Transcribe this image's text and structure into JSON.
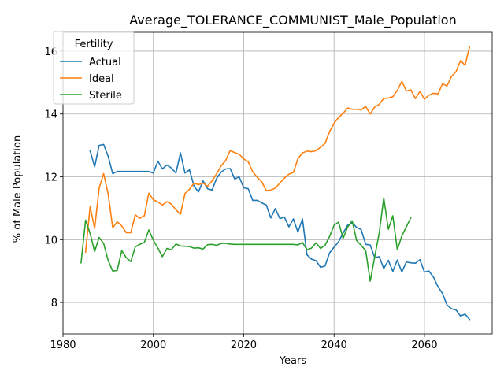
{
  "chart_data": {
    "type": "line",
    "title": "Average_TOLERANCE_COMMUNIST_Male_Population",
    "xlabel": "Years",
    "ylabel": "% of Male Population",
    "xlim": [
      1980,
      2075
    ],
    "ylim": [
      7.0,
      16.6
    ],
    "xticks": [
      1980,
      2000,
      2020,
      2040,
      2060
    ],
    "yticks": [
      8,
      10,
      12,
      14,
      16
    ],
    "grid": true,
    "legend": {
      "title": "Fertility",
      "placement": "top-left"
    },
    "series": [
      {
        "name": "Actual",
        "color": "#1f77b4",
        "x": [
          1986,
          1987,
          1988,
          1989,
          1990,
          1991,
          1992,
          1993,
          1994,
          1995,
          1996,
          1997,
          1998,
          1999,
          2000,
          2001,
          2002,
          2003,
          2004,
          2005,
          2006,
          2007,
          2008,
          2009,
          2010,
          2011,
          2012,
          2013,
          2014,
          2015,
          2016,
          2017,
          2018,
          2019,
          2020,
          2021,
          2022,
          2023,
          2024,
          2025,
          2026,
          2027,
          2028,
          2029,
          2030,
          2031,
          2032,
          2033,
          2034,
          2035,
          2036,
          2037,
          2038,
          2039,
          2040,
          2041,
          2042,
          2043,
          2044,
          2045,
          2046,
          2047,
          2048,
          2049,
          2050,
          2051,
          2052,
          2053,
          2054,
          2055,
          2056,
          2057,
          2058,
          2059,
          2060,
          2061,
          2062,
          2063,
          2064,
          2065,
          2066,
          2067,
          2068,
          2069,
          2070
        ],
        "values": [
          12.83,
          12.32,
          13.0,
          13.03,
          12.65,
          12.1,
          12.17,
          12.17,
          12.17,
          12.17,
          12.17,
          12.17,
          12.17,
          12.17,
          12.12,
          12.5,
          12.25,
          12.38,
          12.28,
          12.12,
          12.76,
          12.12,
          12.22,
          11.7,
          11.52,
          11.87,
          11.62,
          11.58,
          11.95,
          12.15,
          12.25,
          12.26,
          11.93,
          12.0,
          11.65,
          11.62,
          11.25,
          11.25,
          11.17,
          11.1,
          10.69,
          10.99,
          10.67,
          10.72,
          10.41,
          10.66,
          10.24,
          10.66,
          9.52,
          9.38,
          9.33,
          9.12,
          9.16,
          9.58,
          9.76,
          9.93,
          10.21,
          10.46,
          10.54,
          10.39,
          10.32,
          9.85,
          9.83,
          9.43,
          9.46,
          9.08,
          9.34,
          8.99,
          9.35,
          8.97,
          9.29,
          9.26,
          9.25,
          9.36,
          8.97,
          9.0,
          8.81,
          8.5,
          8.29,
          7.92,
          7.8,
          7.76,
          7.57,
          7.63,
          7.46
        ]
      },
      {
        "name": "Ideal",
        "color": "#ff7f0e",
        "x": [
          1985,
          1986,
          1987,
          1988,
          1989,
          1990,
          1991,
          1992,
          1993,
          1994,
          1995,
          1996,
          1997,
          1998,
          1999,
          2000,
          2001,
          2002,
          2003,
          2004,
          2005,
          2006,
          2007,
          2008,
          2009,
          2010,
          2011,
          2012,
          2013,
          2014,
          2015,
          2016,
          2017,
          2018,
          2019,
          2020,
          2021,
          2022,
          2023,
          2024,
          2025,
          2026,
          2027,
          2028,
          2029,
          2030,
          2031,
          2032,
          2033,
          2034,
          2035,
          2036,
          2037,
          2038,
          2039,
          2040,
          2041,
          2042,
          2043,
          2044,
          2045,
          2046,
          2047,
          2048,
          2049,
          2050,
          2051,
          2052,
          2053,
          2054,
          2055,
          2056,
          2057,
          2058,
          2059,
          2060,
          2061,
          2062,
          2063,
          2064,
          2065,
          2066,
          2067,
          2068,
          2069,
          2070
        ],
        "values": [
          9.6,
          11.05,
          10.36,
          11.64,
          12.1,
          11.45,
          10.38,
          10.57,
          10.44,
          10.22,
          10.22,
          10.79,
          10.68,
          10.76,
          11.48,
          11.27,
          11.2,
          11.1,
          11.21,
          11.13,
          10.95,
          10.81,
          11.47,
          11.6,
          11.8,
          11.75,
          11.8,
          11.7,
          11.87,
          12.1,
          12.35,
          12.52,
          12.84,
          12.77,
          12.72,
          12.57,
          12.48,
          12.16,
          11.98,
          11.84,
          11.56,
          11.58,
          11.64,
          11.8,
          11.96,
          12.08,
          12.14,
          12.58,
          12.76,
          12.82,
          12.8,
          12.83,
          12.94,
          13.06,
          13.44,
          13.7,
          13.89,
          14.02,
          14.19,
          14.15,
          14.15,
          14.13,
          14.24,
          14.0,
          14.22,
          14.31,
          14.5,
          14.51,
          14.55,
          14.75,
          15.04,
          14.73,
          14.77,
          14.49,
          14.72,
          14.47,
          14.6,
          14.66,
          14.64,
          14.96,
          14.89,
          15.2,
          15.35,
          15.7,
          15.55,
          16.15
        ]
      },
      {
        "name": "Sterile",
        "color": "#2ca02c",
        "x": [
          1984,
          1985,
          1986,
          1987,
          1988,
          1989,
          1990,
          1991,
          1992,
          1993,
          1994,
          1995,
          1996,
          1997,
          1998,
          1999,
          2000,
          2001,
          2002,
          2003,
          2004,
          2005,
          2006,
          2007,
          2008,
          2009,
          2010,
          2011,
          2012,
          2013,
          2014,
          2015,
          2016,
          2017,
          2018,
          2019,
          2020,
          2021,
          2022,
          2023,
          2024,
          2025,
          2026,
          2027,
          2028,
          2029,
          2030,
          2031,
          2032,
          2033,
          2034,
          2035,
          2036,
          2037,
          2038,
          2039,
          2040,
          2041,
          2042,
          2043,
          2044,
          2045,
          2046,
          2047,
          2048,
          2049,
          2050,
          2051,
          2052,
          2053,
          2054,
          2055,
          2056,
          2057
        ],
        "values": [
          9.26,
          10.62,
          10.2,
          9.62,
          10.07,
          9.88,
          9.33,
          9.0,
          9.02,
          9.65,
          9.43,
          9.3,
          9.77,
          9.85,
          9.91,
          10.31,
          9.98,
          9.73,
          9.46,
          9.72,
          9.68,
          9.86,
          9.8,
          9.79,
          9.78,
          9.73,
          9.74,
          9.7,
          9.84,
          9.85,
          9.82,
          9.88,
          9.88,
          9.86,
          9.85,
          9.85,
          9.85,
          9.85,
          9.85,
          9.85,
          9.85,
          9.85,
          9.85,
          9.85,
          9.85,
          9.85,
          9.85,
          9.85,
          9.83,
          9.91,
          9.68,
          9.73,
          9.9,
          9.72,
          9.82,
          10.1,
          10.46,
          10.56,
          10.04,
          10.4,
          10.6,
          9.97,
          9.82,
          9.65,
          8.68,
          9.45,
          10.22,
          11.33,
          10.33,
          10.76,
          9.68,
          10.12,
          10.41,
          10.7
        ]
      }
    ]
  }
}
